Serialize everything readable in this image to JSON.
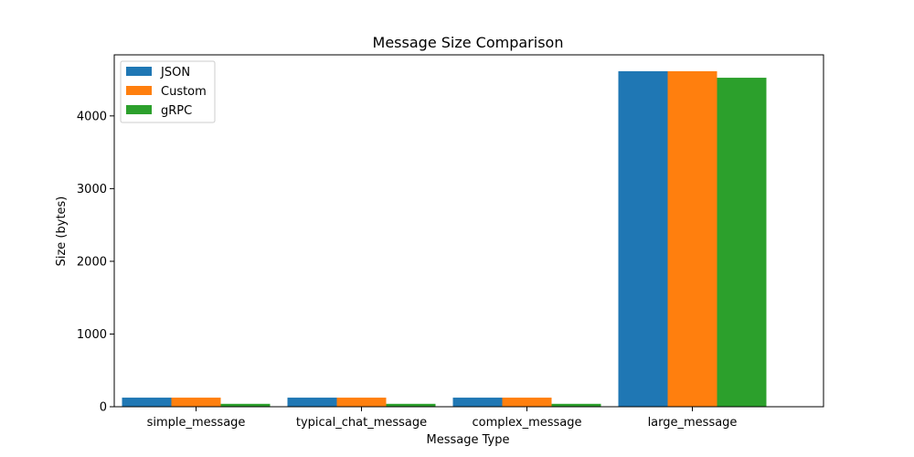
{
  "chart_data": {
    "type": "bar",
    "title": "Message Size Comparison",
    "xlabel": "Message Type",
    "ylabel": "Size (bytes)",
    "categories": [
      "simple_message",
      "typical_chat_message",
      "complex_message",
      "large_message"
    ],
    "series": [
      {
        "name": "JSON",
        "color": "#1f77b4",
        "values": [
          125,
          125,
          125,
          4615
        ]
      },
      {
        "name": "Custom",
        "color": "#ff7f0e",
        "values": [
          125,
          125,
          125,
          4615
        ]
      },
      {
        "name": "gRPC",
        "color": "#2ca02c",
        "values": [
          40,
          40,
          40,
          4525
        ]
      }
    ],
    "ylim": [
      0,
      4840
    ],
    "yticks": [
      0,
      1000,
      2000,
      3000,
      4000
    ],
    "grid": false,
    "legend_position": "top-left"
  }
}
